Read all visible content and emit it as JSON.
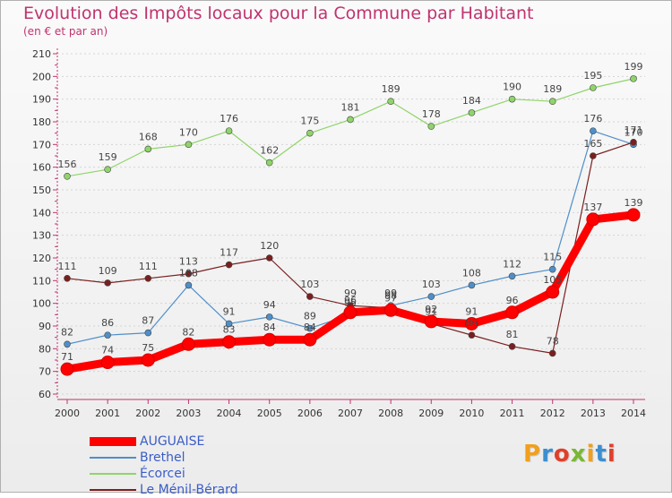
{
  "header": {
    "title": "Evolution des Impôts locaux pour la Commune par Habitant",
    "subtitle": "(en € et par an)"
  },
  "logo": {
    "text": "Proxiti"
  },
  "chart_data": {
    "type": "line",
    "x": [
      "2000",
      "2001",
      "2002",
      "2003",
      "2004",
      "2005",
      "2006",
      "2007",
      "2008",
      "2009",
      "2010",
      "2011",
      "2012",
      "2013",
      "2014"
    ],
    "ylim": [
      60,
      210
    ],
    "ytick_step": 10,
    "grid": "horizontal dotted",
    "legend_position": "bottom-left",
    "series": [
      {
        "name": "AUGUAISE",
        "color": "#ff0000",
        "emphasis": true,
        "values": [
          71,
          74,
          75,
          82,
          83,
          84,
          84,
          96,
          97,
          92,
          91,
          96,
          105,
          137,
          139
        ]
      },
      {
        "name": "Brethel",
        "color": "#4f8fc9",
        "values": [
          82,
          86,
          87,
          108,
          91,
          94,
          89,
          95,
          99,
          103,
          108,
          112,
          115,
          176,
          170
        ]
      },
      {
        "name": "Écorcei",
        "color": "#8fd46a",
        "values": [
          156,
          159,
          168,
          170,
          176,
          162,
          175,
          181,
          189,
          178,
          184,
          190,
          189,
          195,
          199
        ]
      },
      {
        "name": "Le Ménil-Bérard",
        "color": "#7a1f1f",
        "values": [
          111,
          109,
          111,
          113,
          117,
          120,
          103,
          99,
          98,
          91,
          86,
          81,
          78,
          165,
          171
        ]
      }
    ]
  }
}
